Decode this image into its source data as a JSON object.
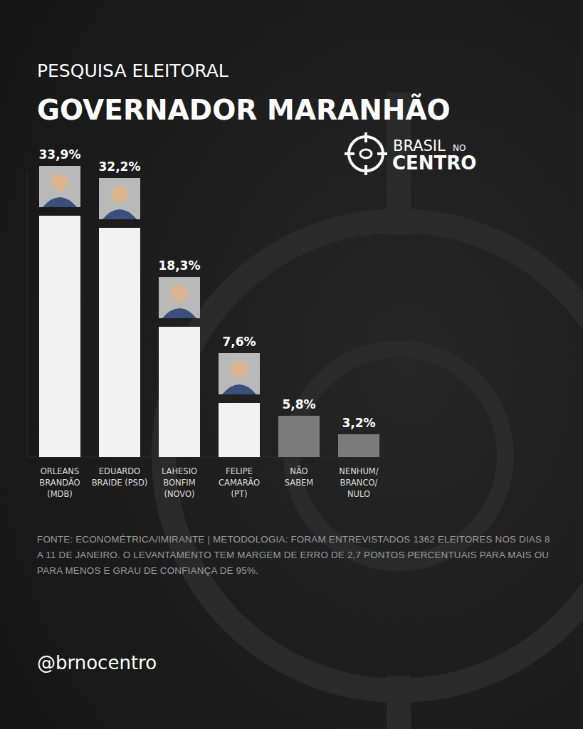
{
  "chart_data": {
    "type": "bar",
    "subtitle": "PESQUISA ELEITORAL",
    "title": "GOVERNADOR MARANHÃO",
    "categories": [
      "ORLEANS\nBRANDÃO\n(MDB)",
      "EDUARDO\nBRAIDE (PSD)",
      "LAHESIO\nBONFIM\n(NOVO)",
      "FELIPE\nCAMARÃO\n(PT)",
      "NÃO\nSABEM",
      "NENHUM/\nBRANCO/\nNULO"
    ],
    "values": [
      33.9,
      32.2,
      18.3,
      7.6,
      5.8,
      3.2
    ],
    "value_labels": [
      "33,9%",
      "32,2%",
      "18,3%",
      "7,6%",
      "5,8%",
      "3,2%"
    ],
    "colors": [
      "#f2f2f2",
      "#f2f2f2",
      "#f2f2f2",
      "#f2f2f2",
      "#7b7b7b",
      "#7b7b7b"
    ],
    "ylim": [
      0,
      40
    ],
    "data_labels": true,
    "tick_labels": "x",
    "grid": false,
    "source": "FONTE: ECONOMÉTRICA/IMIRANTE | METODOLOGIA: FORAM ENTREVISTADOS 1362 ELEITORES NOS DIAS 8 A 11 DE JANEIRO. O LEVANTAMENTO TEM MARGEM DE ERRO DE 2,7 PONTOS PERCENTUAIS PARA MAIS OU PARA MENOS E GRAU DE CONFIANÇA DE 95%."
  },
  "branding": {
    "logo_top": "BRASIL",
    "logo_small": "NO",
    "logo_bottom": "CENTRO",
    "handle": "@brnocentro"
  }
}
